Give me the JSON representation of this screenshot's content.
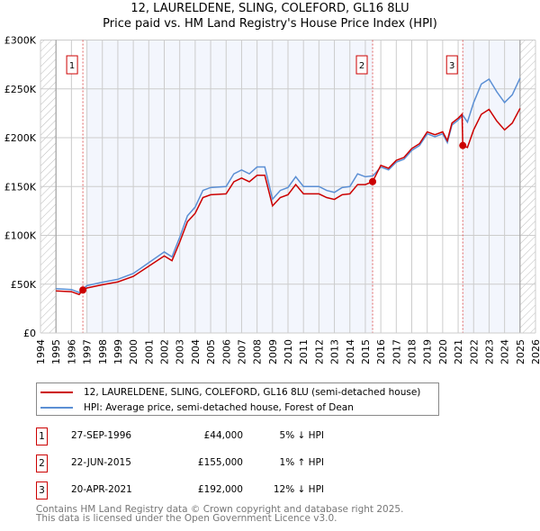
{
  "title": "12, LAURELDENE, SLING, COLEFORD, GL16 8LU",
  "subtitle": "Price paid vs. HM Land Registry's House Price Index (HPI)",
  "chart_data": {
    "type": "line",
    "xlim": [
      1994,
      2026
    ],
    "ylim": [
      0,
      300000
    ],
    "x_ticks": [
      "1994",
      "1995",
      "1996",
      "1997",
      "1998",
      "1999",
      "2000",
      "2001",
      "2002",
      "2003",
      "2004",
      "2005",
      "2006",
      "2007",
      "2008",
      "2009",
      "2010",
      "2011",
      "2012",
      "2013",
      "2014",
      "2015",
      "2016",
      "2017",
      "2018",
      "2019",
      "2020",
      "2021",
      "2022",
      "2023",
      "2024",
      "2025",
      "2026"
    ],
    "y_ticks": [
      {
        "v": 0,
        "label": "£0"
      },
      {
        "v": 50000,
        "label": "£50K"
      },
      {
        "v": 100000,
        "label": "£100K"
      },
      {
        "v": 150000,
        "label": "£150K"
      },
      {
        "v": 200000,
        "label": "£200K"
      },
      {
        "v": 250000,
        "label": "£250K"
      },
      {
        "v": 300000,
        "label": "£300K"
      }
    ],
    "data_range": [
      1995,
      2025
    ],
    "series": [
      {
        "name": "12, LAURELDENE, SLING, COLEFORD, GL16 8LU (semi-detached house)",
        "color": "#cc0000",
        "x": [
          1995,
          1996,
          1996.5,
          1996.74,
          1997,
          1998,
          1999,
          2000,
          2001,
          2002,
          2002.5,
          2003,
          2003.5,
          2004,
          2004.5,
          2005,
          2006,
          2006.5,
          2007,
          2007.5,
          2008,
          2008.5,
          2009,
          2009.5,
          2010,
          2010.5,
          2011,
          2012,
          2012.5,
          2013,
          2013.5,
          2014,
          2014.5,
          2015,
          2015.47,
          2016,
          2016.5,
          2017,
          2017.5,
          2018,
          2018.5,
          2019,
          2019.5,
          2020,
          2020.3,
          2020.6,
          2021,
          2021.25,
          2021.3,
          2021.6,
          2022,
          2022.5,
          2023,
          2023.5,
          2024,
          2024.5,
          2025
        ],
        "y": [
          43100,
          42300,
          39400,
          44000,
          46100,
          49400,
          52300,
          58000,
          68400,
          78900,
          74100,
          93100,
          114000,
          122600,
          138700,
          141600,
          142500,
          154900,
          158700,
          154900,
          161500,
          161500,
          130200,
          138700,
          141600,
          152000,
          142500,
          142500,
          138700,
          136800,
          141600,
          142500,
          152000,
          152000,
          155000,
          171700,
          168700,
          176800,
          179800,
          188900,
          193900,
          206000,
          203000,
          206000,
          197000,
          215000,
          220000,
          224000,
          192000,
          190000,
          208000,
          224000,
          229000,
          217000,
          208000,
          215000,
          230000
        ]
      },
      {
        "name": "HPI: Average price, semi-detached house, Forest of Dean",
        "color": "#5b8fd4",
        "x": [
          1995,
          1996,
          1996.5,
          1997,
          1998,
          1999,
          2000,
          2001,
          2002,
          2002.5,
          2003,
          2003.5,
          2004,
          2004.5,
          2005,
          2006,
          2006.5,
          2007,
          2007.5,
          2008,
          2008.5,
          2009,
          2009.5,
          2010,
          2010.5,
          2011,
          2012,
          2012.5,
          2013,
          2013.5,
          2014,
          2014.5,
          2015,
          2015.5,
          2016,
          2016.5,
          2017,
          2017.5,
          2018,
          2018.5,
          2019,
          2019.5,
          2020,
          2020.3,
          2020.6,
          2021,
          2021.3,
          2021.6,
          2022,
          2022.5,
          2023,
          2023.5,
          2024,
          2024.5,
          2025
        ],
        "y": [
          45400,
          44500,
          41500,
          48500,
          52000,
          55000,
          61000,
          72000,
          83000,
          78000,
          98000,
          120000,
          129000,
          146000,
          149000,
          150000,
          163000,
          167000,
          163000,
          170000,
          170000,
          137000,
          146000,
          149000,
          160000,
          150000,
          150000,
          146000,
          144000,
          149000,
          150000,
          163000,
          160000,
          161000,
          170000,
          167000,
          175000,
          178000,
          187000,
          192000,
          204000,
          201000,
          204000,
          195000,
          213000,
          218000,
          223000,
          216000,
          236000,
          255000,
          260000,
          247000,
          236000,
          244000,
          261000
        ]
      }
    ],
    "sales": [
      {
        "label": "1",
        "x": 1996.74,
        "y": 44000
      },
      {
        "label": "2",
        "x": 2015.47,
        "y": 155000
      },
      {
        "label": "3",
        "x": 2021.3,
        "y": 192000
      }
    ]
  },
  "legend": {
    "property": "12, LAURELDENE, SLING, COLEFORD, GL16 8LU (semi-detached house)",
    "hpi": "HPI: Average price, semi-detached house, Forest of Dean"
  },
  "transactions": [
    {
      "num": "1",
      "date": "27-SEP-1996",
      "price": "£44,000",
      "hpi": "5% ↓ HPI"
    },
    {
      "num": "2",
      "date": "22-JUN-2015",
      "price": "£155,000",
      "hpi": "1% ↑ HPI"
    },
    {
      "num": "3",
      "date": "20-APR-2021",
      "price": "£192,000",
      "hpi": "12% ↓ HPI"
    }
  ],
  "footer": {
    "line1": "Contains HM Land Registry data © Crown copyright and database right 2025.",
    "line2": "This data is licensed under the Open Government Licence v3.0."
  }
}
